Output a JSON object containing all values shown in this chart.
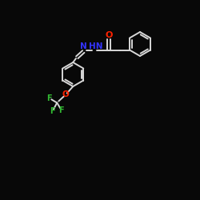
{
  "background_color": "#080808",
  "bond_color": "#d8d8d8",
  "atom_colors": {
    "N": "#3333ff",
    "O": "#ff2200",
    "F": "#33bb33",
    "C": "#d8d8d8"
  },
  "bond_width": 1.4,
  "figsize": [
    2.5,
    2.5
  ],
  "dpi": 100,
  "xlim": [
    0,
    10
  ],
  "ylim": [
    0,
    10
  ]
}
